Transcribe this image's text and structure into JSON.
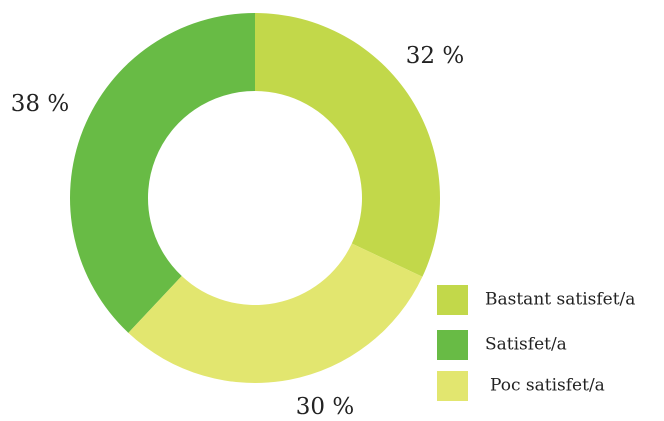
{
  "chart_data": {
    "type": "donut",
    "categories": [
      "Bastant satisfet/a",
      "Satisfet/a",
      "Poc satisfet/a"
    ],
    "values": [
      32,
      38,
      30
    ],
    "value_labels": [
      "32 %",
      "38 %",
      "30 %"
    ],
    "colors": [
      "#c2d84a",
      "#68bb45",
      "#e2e66f"
    ],
    "legend": "lower right"
  }
}
